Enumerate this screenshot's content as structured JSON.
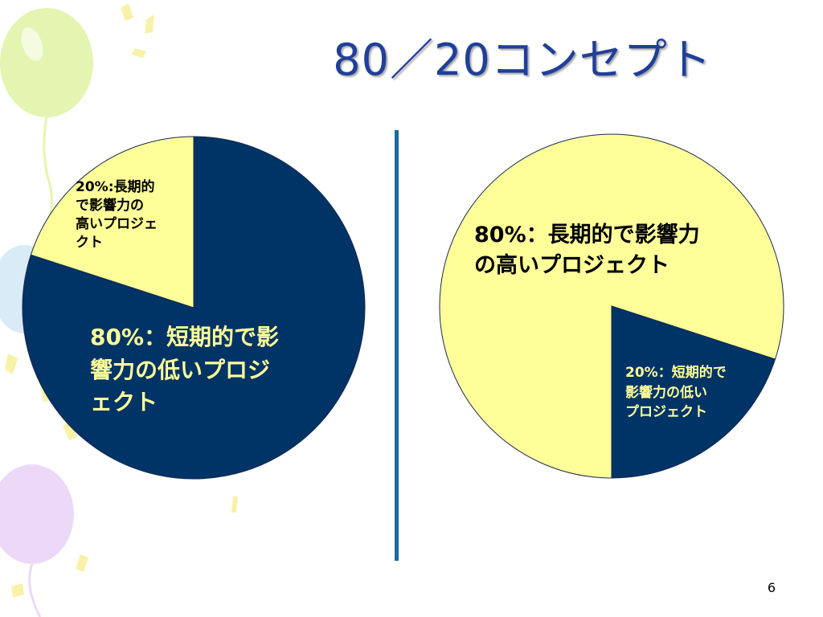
{
  "slide": {
    "title": "80／20コンセプト",
    "page_number": "6"
  },
  "colors": {
    "navy": "#003366",
    "pale_yellow": "#ffff99",
    "title_blue": "#1f3f9a",
    "divider": "#1c6b9a",
    "balloon_green": "#e3f5b0",
    "balloon_blue": "#d8ebf7",
    "balloon_purple": "#ecd9f7"
  },
  "chart_data": [
    {
      "type": "pie",
      "slices": [
        {
          "label": "80%：短期的で影響力の低いプロジェクト",
          "value": 80,
          "color": "#003366"
        },
        {
          "label": "20%：長期的で影響力の高いプロジェクト",
          "value": 20,
          "color": "#ffff99"
        }
      ]
    },
    {
      "type": "pie",
      "slices": [
        {
          "label": "80%：長期的で影響力の高いプロジェクト",
          "value": 80,
          "color": "#ffff99"
        },
        {
          "label": "20%：短期的で影響力の低いプロジェクト",
          "value": 20,
          "color": "#003366"
        }
      ]
    }
  ],
  "labels": {
    "left_small": [
      "20%:長期的",
      "で影響力の",
      "高いプロジェ",
      "クト"
    ],
    "left_big": [
      "80%：短期的で影",
      "響力の低いプロジ",
      "ェクト"
    ],
    "right_big": [
      "80%：長期的で影響力",
      "の高いプロジェクト"
    ],
    "right_small": [
      "20%：短期的で",
      "影響力の低い",
      "プロジェクト"
    ]
  }
}
